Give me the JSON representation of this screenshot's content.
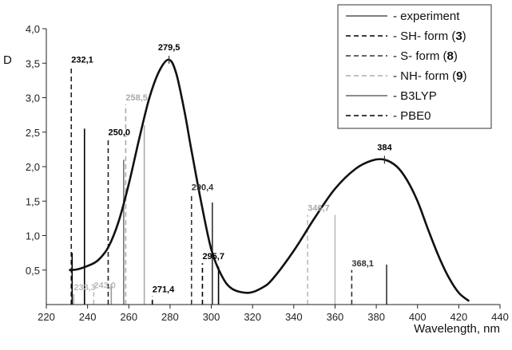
{
  "chart_data": {
    "type": "line",
    "ylabel": "D",
    "xlabel": "Wavelength, nm",
    "xlim": [
      220,
      440
    ],
    "ylim": [
      0,
      4.0
    ],
    "x_ticks": [
      "220",
      "240",
      "260",
      "280",
      "300",
      "320",
      "340",
      "360",
      "380",
      "400",
      "420",
      "440"
    ],
    "y_ticks": [
      "0,5",
      "1,0",
      "1,5",
      "2,0",
      "2,5",
      "3,0",
      "3,5",
      "4,0"
    ],
    "legend_position": "top-right",
    "legend": [
      {
        "text": "- experiment",
        "style": "solid",
        "color": "#555555"
      },
      {
        "text": "- SH- form (",
        "num": "3",
        "tail": ")",
        "style": "dashed",
        "color": "#000000"
      },
      {
        "text": "- S- form (",
        "num": "8",
        "tail": ")",
        "style": "dashed",
        "color": "#333333"
      },
      {
        "text": "- NH- form (",
        "num": "9",
        "tail": ")",
        "style": "dashed",
        "color": "#aaaaaa"
      },
      {
        "text": "- B3LYP",
        "style": "solid",
        "color": "#666666"
      },
      {
        "text": "- PBE0",
        "style": "dashed",
        "color": "#000000"
      }
    ],
    "experiment_curve": {
      "x": [
        231,
        235,
        240,
        245,
        250,
        255,
        260,
        265,
        270,
        275,
        279.5,
        283,
        287,
        290,
        295,
        300,
        305,
        310,
        318,
        325,
        330,
        340,
        350,
        360,
        370,
        378,
        384,
        390,
        395,
        400,
        405,
        410,
        415,
        420,
        425
      ],
      "y": [
        0.5,
        0.51,
        0.56,
        0.64,
        0.83,
        1.2,
        1.75,
        2.4,
        3.0,
        3.4,
        3.55,
        3.35,
        2.8,
        2.3,
        1.5,
        0.8,
        0.42,
        0.23,
        0.17,
        0.25,
        0.38,
        0.78,
        1.25,
        1.68,
        1.97,
        2.09,
        2.1,
        2.0,
        1.8,
        1.5,
        1.1,
        0.72,
        0.4,
        0.17,
        0.05
      ]
    },
    "sticks": [
      {
        "x": 232.1,
        "y": 3.45,
        "style": "dashed",
        "color": "#222222",
        "label": "232,1",
        "label_color": "#000000"
      },
      {
        "x": 232.5,
        "y": 0.75,
        "style": "solid",
        "color": "#000000",
        "label": "",
        "label_color": ""
      },
      {
        "x": 233.3,
        "y": 0.15,
        "style": "solid",
        "color": "#aaaaaa",
        "label": "233,3",
        "label_color": "#bbbbbb"
      },
      {
        "x": 238.5,
        "y": 2.55,
        "style": "solid",
        "color": "#000000",
        "label": "",
        "label_color": ""
      },
      {
        "x": 243.0,
        "y": 0.18,
        "style": "dashed",
        "color": "#bbbbbb",
        "label": "243,0",
        "label_color": "#bbbbbb"
      },
      {
        "x": 250.0,
        "y": 2.4,
        "style": "dashed",
        "color": "#222222",
        "label": "250,0",
        "label_color": "#000000"
      },
      {
        "x": 251.5,
        "y": 0.3,
        "style": "solid",
        "color": "#999999",
        "label": "",
        "label_color": ""
      },
      {
        "x": 257.5,
        "y": 2.1,
        "style": "solid",
        "color": "#777777",
        "label": "",
        "label_color": ""
      },
      {
        "x": 258.5,
        "y": 2.9,
        "style": "dashed",
        "color": "#aaaaaa",
        "label": "258,5",
        "label_color": "#aaaaaa"
      },
      {
        "x": 267.5,
        "y": 2.6,
        "style": "solid",
        "color": "#aaaaaa",
        "label": "",
        "label_color": ""
      },
      {
        "x": 271.4,
        "y": 0.12,
        "style": "dashed",
        "color": "#000000",
        "label": "271,4",
        "label_color": "#000000"
      },
      {
        "x": 290.4,
        "y": 1.6,
        "style": "dashed",
        "color": "#333333",
        "label": "290,4",
        "label_color": "#333333"
      },
      {
        "x": 295.7,
        "y": 0.6,
        "style": "dashed",
        "color": "#000000",
        "label": "295,7",
        "label_color": "#000000"
      },
      {
        "x": 300.5,
        "y": 1.48,
        "style": "solid",
        "color": "#333333",
        "label": "",
        "label_color": ""
      },
      {
        "x": 303.5,
        "y": 0.55,
        "style": "solid",
        "color": "#000000",
        "label": "",
        "label_color": ""
      },
      {
        "x": 346.7,
        "y": 1.3,
        "style": "dashed",
        "color": "#bbbbbb",
        "label": "346,7",
        "label_color": "#aaaaaa"
      },
      {
        "x": 360.0,
        "y": 1.3,
        "style": "solid",
        "color": "#bbbbbb",
        "label": "",
        "label_color": ""
      },
      {
        "x": 368.1,
        "y": 0.5,
        "style": "dashed",
        "color": "#333333",
        "label": "368,1",
        "label_color": "#333333"
      },
      {
        "x": 385.0,
        "y": 0.58,
        "style": "solid",
        "color": "#333333",
        "label": "",
        "label_color": ""
      }
    ],
    "peak_labels": [
      {
        "x": 279.5,
        "y": 3.55,
        "label": "279,5"
      },
      {
        "x": 384,
        "y": 2.1,
        "label": "384"
      }
    ]
  }
}
